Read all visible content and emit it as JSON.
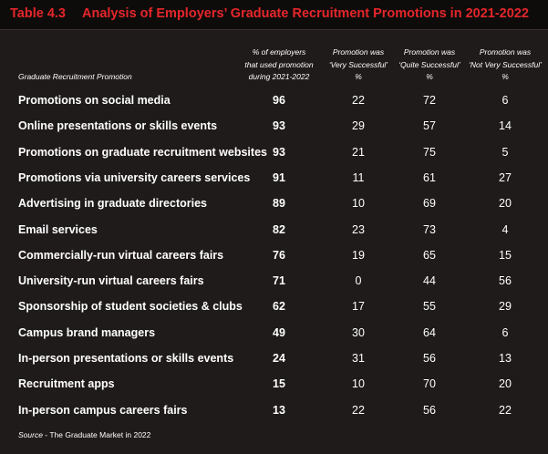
{
  "header": {
    "label": "Table 4.3",
    "title": "Analysis of Employers’ Graduate Recruitment Promotions in 2021-2022"
  },
  "table": {
    "columns": [
      [
        "Graduate Recruitment Promotion"
      ],
      [
        "% of employers",
        "that used promotion",
        "during 2021-2022"
      ],
      [
        "Promotion was",
        "‘Very Successful’",
        "%"
      ],
      [
        "Promotion was",
        "‘Quite Successful’",
        "%"
      ],
      [
        "Promotion was",
        "‘Not Very Successful’",
        "%"
      ]
    ],
    "rows": [
      [
        "Promotions on social media",
        96,
        22,
        72,
        6
      ],
      [
        "Online presentations or skills events",
        93,
        29,
        57,
        14
      ],
      [
        "Promotions on graduate recruitment websites",
        93,
        21,
        75,
        5
      ],
      [
        "Promotions via university careers services",
        91,
        11,
        61,
        27
      ],
      [
        "Advertising in graduate directories",
        89,
        10,
        69,
        20
      ],
      [
        "Email services",
        82,
        23,
        73,
        4
      ],
      [
        "Commercially-run virtual careers fairs",
        76,
        19,
        65,
        15
      ],
      [
        "University-run virtual careers fairs",
        71,
        0,
        44,
        56
      ],
      [
        "Sponsorship of student societies & clubs",
        62,
        17,
        55,
        29
      ],
      [
        "Campus brand managers",
        49,
        30,
        64,
        6
      ],
      [
        "In-person presentations or skills events",
        24,
        31,
        56,
        13
      ],
      [
        "Recruitment apps",
        15,
        10,
        70,
        20
      ],
      [
        "In-person campus careers fairs",
        13,
        22,
        56,
        22
      ]
    ]
  },
  "source": {
    "label": "Source",
    "text": " - The Graduate Market in 2022"
  }
}
